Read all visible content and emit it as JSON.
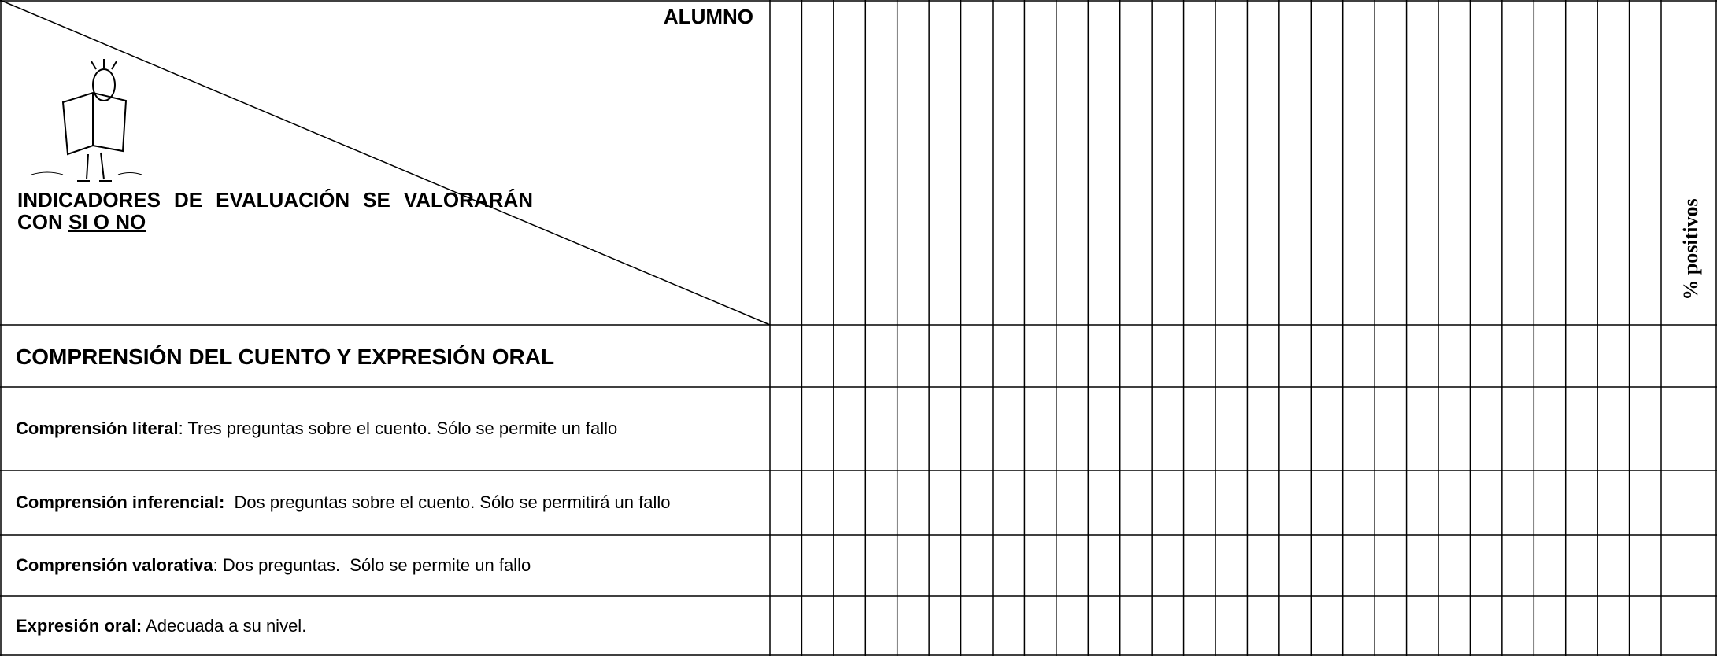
{
  "header": {
    "student": "ALUMNO",
    "indicators": "INDICADORES DE EVALUACIÓN SE VALORARÁN CON ",
    "indicators_emphasis": "SI O NO",
    "percent": "% positivos"
  },
  "section": "COMPRENSIÓN DEL CUENTO Y EXPRESIÓN ORAL",
  "rows": [
    {
      "label": "Comprensión literal",
      "text": ": Tres preguntas sobre el cuento. Sólo se permite un fallo"
    },
    {
      "label": "Comprensión inferencial:",
      "text": "  Dos preguntas sobre el cuento. Sólo se permitirá un fallo"
    },
    {
      "label": "Comprensión valorativa",
      "text": ": Dos preguntas.  Sólo se permite un fallo"
    },
    {
      "label": "Expresión oral:",
      "text": " Adecuada a su nivel."
    }
  ]
}
